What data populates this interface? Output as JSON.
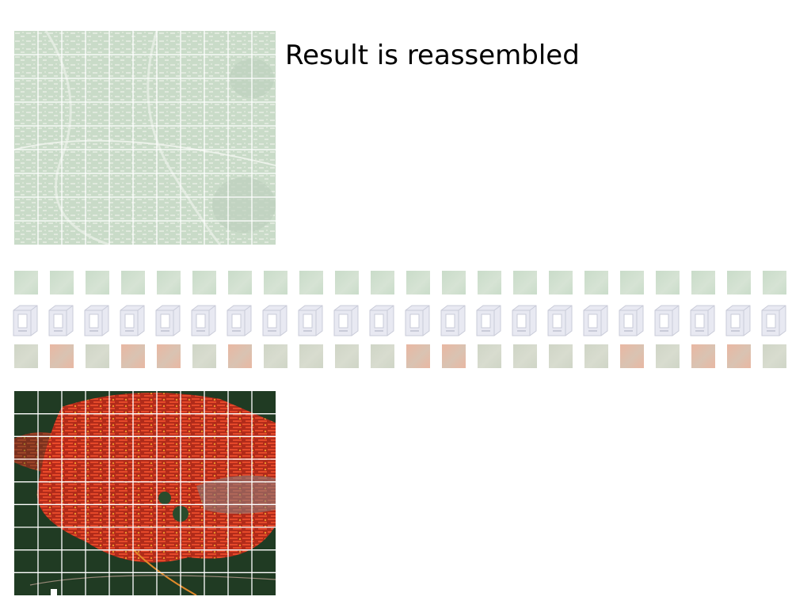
{
  "title": "Result is reassembled",
  "tile_count": 22,
  "grid": {
    "columns": 11,
    "rows_top": 9,
    "rows_bottom": 9
  },
  "colors": {
    "input_tile": "#c9dcc9",
    "output_tile_green": "#cfd5c6",
    "output_tile_red": "#e9b7a2",
    "computer_icon": "#e8e9f2",
    "result_background": "#1f3a22",
    "result_overlay": "#d9301f",
    "grid_line": "#ffffff"
  },
  "output_tile_pattern": [
    "green",
    "red",
    "green",
    "red",
    "red",
    "green",
    "red",
    "green",
    "green",
    "green",
    "green",
    "red",
    "red",
    "green",
    "green",
    "green",
    "green",
    "red",
    "green",
    "red",
    "red",
    "green"
  ],
  "icons": {
    "computer": "computer-icon"
  }
}
